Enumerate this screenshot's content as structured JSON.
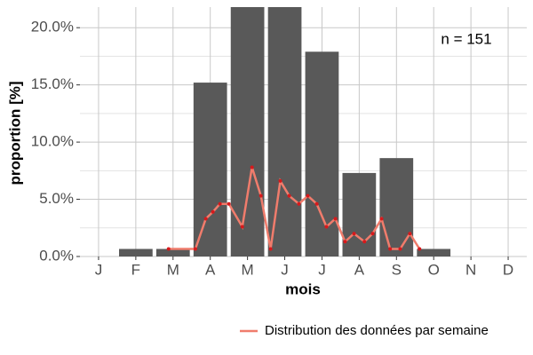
{
  "chart_data": {
    "type": "bar",
    "x_label": "mois",
    "y_label": "proportion [%]",
    "annotation": "n = 151",
    "categories": [
      "J",
      "F",
      "M",
      "A",
      "M",
      "J",
      "J",
      "A",
      "S",
      "O",
      "N",
      "D"
    ],
    "values": [
      0,
      0.66,
      0.66,
      15.2,
      21.8,
      21.8,
      17.9,
      7.3,
      8.6,
      0.66,
      0,
      0
    ],
    "color": "#595959",
    "xlim": [
      0.5,
      12.5
    ],
    "ylim": [
      0,
      21.8
    ],
    "yticks": [
      {
        "value": 0,
        "label": "0.0%"
      },
      {
        "value": 5,
        "label": "5.0%"
      },
      {
        "value": 10,
        "label": "10.0%"
      },
      {
        "value": 15,
        "label": "15.0%"
      },
      {
        "value": 20,
        "label": "20.0%"
      }
    ],
    "grid": true,
    "legend": "bottom-right",
    "series": [
      {
        "name": "Distribution des données par semaine",
        "color": "#f07c6c",
        "point_color": "#d7191c",
        "x": [
          2.88,
          3.6,
          3.88,
          4.07,
          4.26,
          4.5,
          4.86,
          5.12,
          5.36,
          5.62,
          5.88,
          6.12,
          6.38,
          6.62,
          6.86,
          7.12,
          7.36,
          7.62,
          7.86,
          8.14,
          8.36,
          8.6,
          8.83,
          9.1,
          9.36,
          9.62
        ],
        "values": [
          0.66,
          0.66,
          3.3,
          3.9,
          4.6,
          4.6,
          2.6,
          7.8,
          5.3,
          0.66,
          6.6,
          5.3,
          4.6,
          5.3,
          4.6,
          2.6,
          3.3,
          1.3,
          2.0,
          1.3,
          2.0,
          3.3,
          0.66,
          0.66,
          2.0,
          0.66
        ]
      }
    ]
  }
}
